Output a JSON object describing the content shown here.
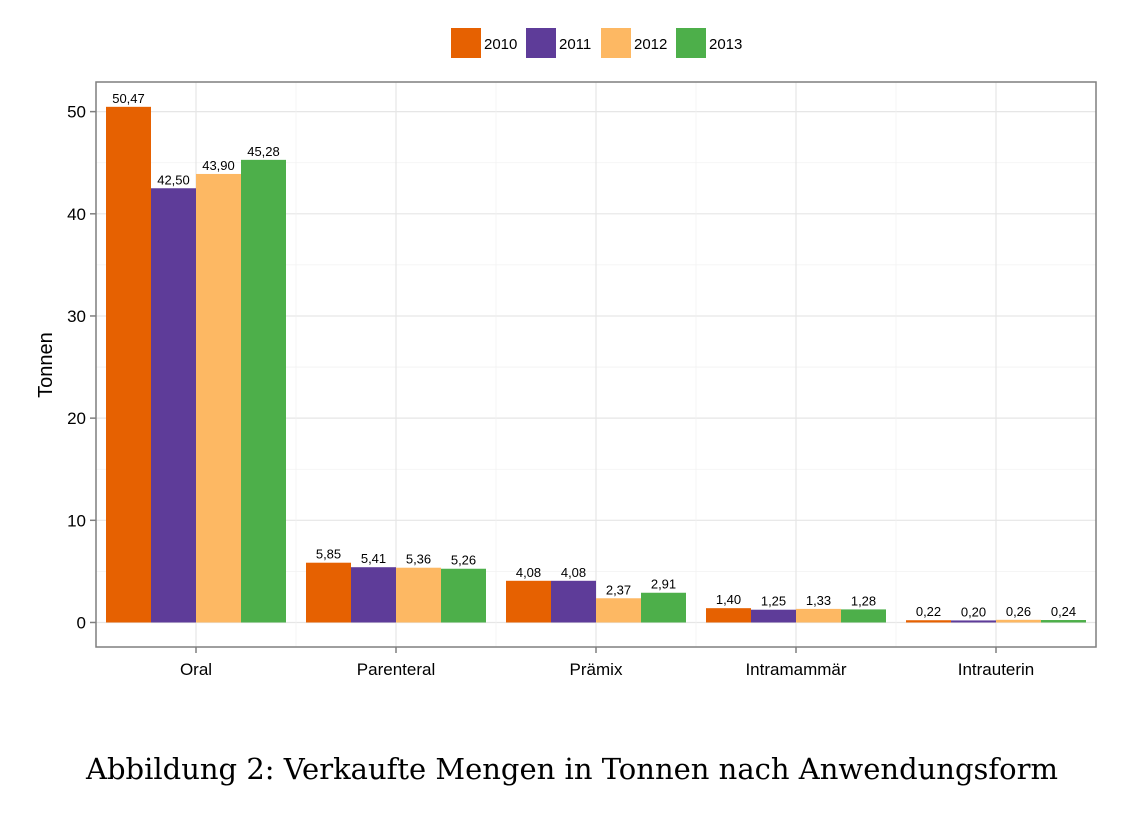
{
  "chart_data": {
    "type": "bar",
    "categories": [
      "Oral",
      "Parenteral",
      "Prämix",
      "Intramammär",
      "Intrauterin"
    ],
    "series": [
      {
        "name": "2010",
        "color": "#e66101",
        "values": [
          50.47,
          5.85,
          4.08,
          1.4,
          0.22
        ],
        "labels": [
          "50,47",
          "5,85",
          "4,08",
          "1,40",
          "0,22"
        ]
      },
      {
        "name": "2011",
        "color": "#5e3c99",
        "values": [
          42.5,
          5.41,
          4.08,
          1.25,
          0.2
        ],
        "labels": [
          "42,50",
          "5,41",
          "4,08",
          "1,25",
          "0,20"
        ]
      },
      {
        "name": "2012",
        "color": "#fdb863",
        "values": [
          43.9,
          5.36,
          2.37,
          1.33,
          0.26
        ],
        "labels": [
          "43,90",
          "5,36",
          "2,37",
          "1,33",
          "0,26"
        ]
      },
      {
        "name": "2013",
        "color": "#4daf4a",
        "values": [
          45.28,
          5.26,
          2.91,
          1.28,
          0.24
        ],
        "labels": [
          "45,28",
          "5,26",
          "2,91",
          "1,28",
          "0,24"
        ]
      }
    ],
    "xlabel": "",
    "ylabel": "Tonnen",
    "ylim": [
      -2.4,
      52.9
    ],
    "yticks": [
      0,
      10,
      20,
      30,
      40,
      50
    ],
    "ytick_labels": [
      "0",
      "10",
      "20",
      "30",
      "40",
      "50"
    ],
    "grid": true,
    "legend_position": "top"
  },
  "caption": "Abbildung 2: Verkaufte Mengen in Tonnen nach Anwendungsform"
}
